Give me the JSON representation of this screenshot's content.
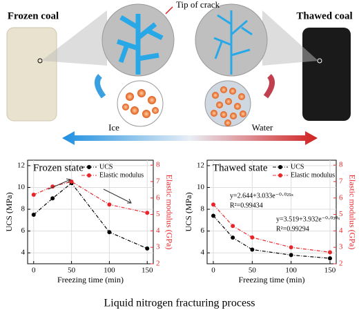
{
  "figure": {
    "left_label": "Frozen coal",
    "right_label": "Thawed coal",
    "crack_label": "Tip of crack",
    "ice_label": "Ice",
    "water_label": "Water",
    "caption": "Liquid nitrogen fracturing process"
  },
  "chart_data": [
    {
      "type": "line",
      "annotations": [
        "Frozen state"
      ],
      "x": [
        0,
        25,
        50,
        100,
        150
      ],
      "xlim": [
        -8,
        158
      ],
      "xticks": [
        0,
        50,
        100,
        150
      ],
      "xlabel": "Freezing time (min)",
      "ylabel": "UCS (MPa)",
      "y2label": "Elastic modulus (GPa)",
      "ylim": [
        3,
        12.5
      ],
      "yticks": [
        4,
        6,
        8,
        10,
        12
      ],
      "y2lim": [
        2,
        8.3
      ],
      "y2ticks": [
        2,
        3,
        4,
        5,
        6,
        7,
        8
      ],
      "series": [
        {
          "name": "UCS",
          "color": "#000000",
          "values": [
            7.5,
            9.0,
            10.4,
            5.9,
            4.4
          ]
        },
        {
          "name": "Elastic modulus",
          "color": "#e8262a",
          "axis": "y2",
          "values": [
            6.2,
            6.7,
            7.0,
            5.6,
            5.1
          ]
        }
      ]
    },
    {
      "type": "line",
      "annotations": [
        "Thawed state",
        "y=2.644+3.033e⁻⁰·⁰²⁵ˣ",
        "R²=0.99434",
        "y=3.519+3.932e⁻⁰·⁰³⁰ˣ",
        "R²=0.99294"
      ],
      "x": [
        0,
        25,
        50,
        100,
        150
      ],
      "xlim": [
        -8,
        158
      ],
      "xticks": [
        0,
        50,
        100,
        150
      ],
      "xlabel": "Freezing time (min)",
      "ylabel": "UCS (MPa)",
      "y2label": "Elastic modulus (GPa)",
      "ylim": [
        3,
        12.5
      ],
      "yticks": [
        4,
        6,
        8,
        10,
        12
      ],
      "y2lim": [
        2,
        8.3
      ],
      "y2ticks": [
        2,
        3,
        4,
        5,
        6,
        7,
        8
      ],
      "series": [
        {
          "name": "UCS",
          "color": "#000000",
          "values": [
            7.4,
            5.4,
            4.3,
            3.8,
            3.5
          ]
        },
        {
          "name": "Elastic modulus",
          "color": "#e8262a",
          "axis": "y2",
          "values": [
            5.6,
            4.3,
            3.6,
            3.0,
            2.7
          ]
        }
      ]
    }
  ]
}
